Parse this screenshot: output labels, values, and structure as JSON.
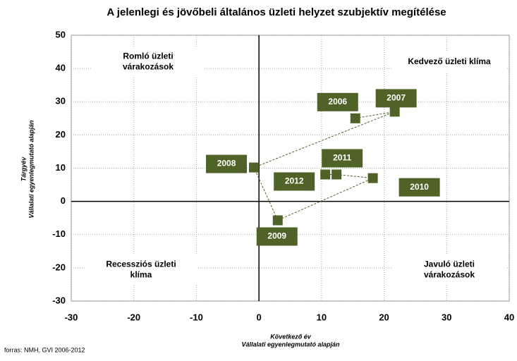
{
  "chart_data": {
    "type": "scatter",
    "title": "A jelenlegi és jövőbeli általános üzleti helyzet szubjektív megítélése",
    "x_label": [
      "Következő év",
      "Vállalati egyenlegmutató  alapján"
    ],
    "y_label": [
      "Tárgyév",
      "Vállalati egyenlegmutató  alapján"
    ],
    "source": "forras: NMH, GVI 2006-2012",
    "quadrant_labels": [
      [
        "Romló üzleti",
        "várakozások"
      ],
      [
        "Kedvező üzleti klíma"
      ],
      [
        "Recessziós üzleti",
        "klíma"
      ],
      [
        "Javuló üzleti",
        "várakozások"
      ]
    ],
    "series": [
      {
        "color": "#4f6228",
        "point_labels": [
          "2006",
          "2007",
          "2008",
          "2009",
          "2010",
          "2011",
          "2012"
        ],
        "x": [
          15.4,
          21.7,
          -0.8,
          3,
          18.2,
          12.4,
          10.6
        ],
        "values": [
          25,
          27,
          10.2,
          -5.7,
          7,
          8.1,
          8.1
        ]
      }
    ],
    "xlim": [
      -30,
      40
    ],
    "xticks": [
      -30,
      -20,
      -10,
      0,
      10,
      20,
      30,
      40
    ],
    "ylim": [
      -30,
      50
    ],
    "yticks": [
      -30,
      -20,
      -10,
      0,
      10,
      20,
      30,
      40,
      50
    ],
    "grid": true
  }
}
